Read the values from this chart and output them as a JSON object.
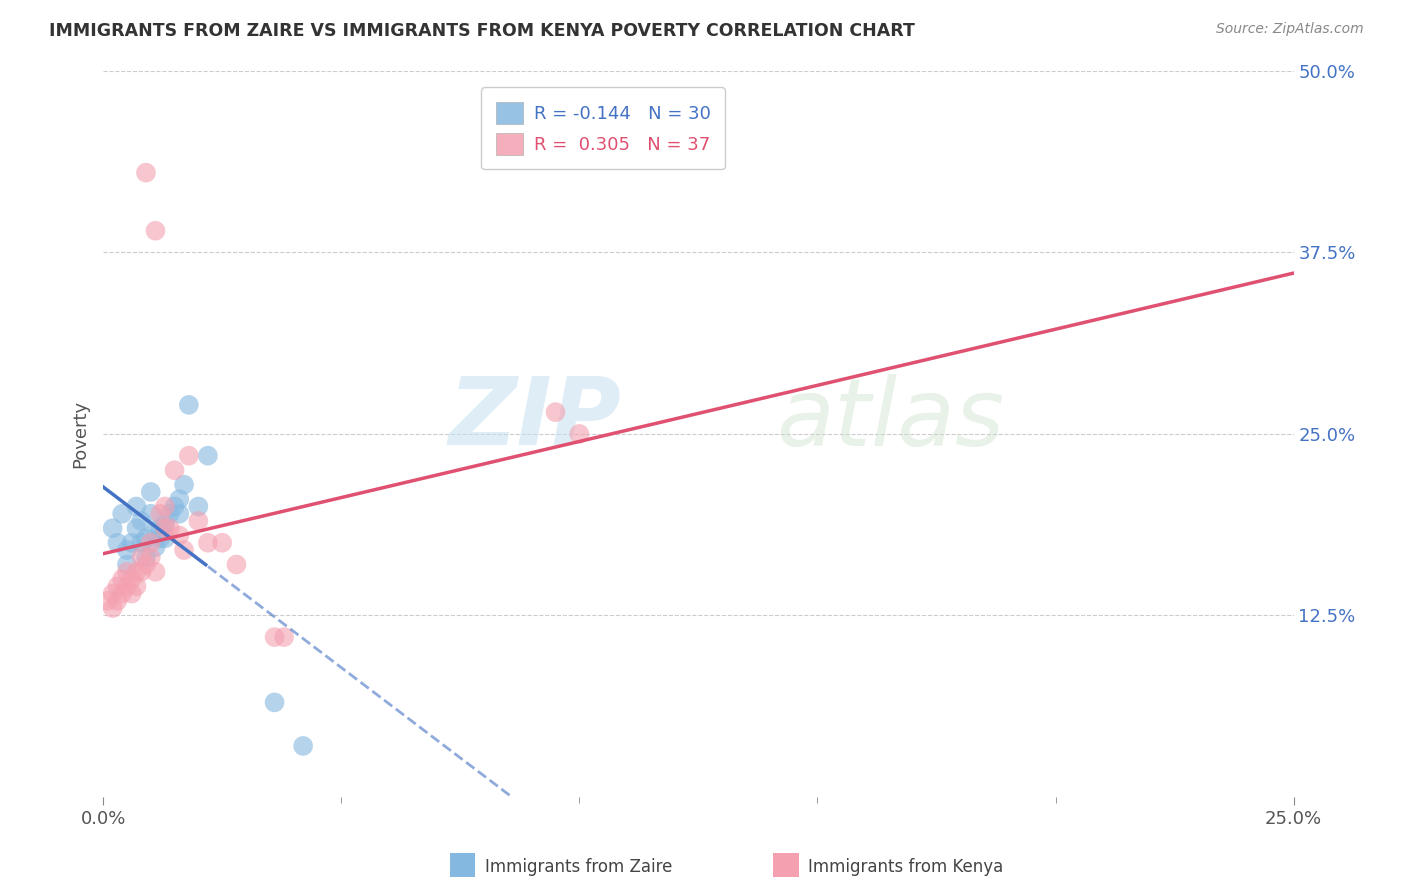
{
  "title": "IMMIGRANTS FROM ZAIRE VS IMMIGRANTS FROM KENYA POVERTY CORRELATION CHART",
  "source": "Source: ZipAtlas.com",
  "ylabel_label": "Poverty",
  "zaire_R": -0.144,
  "zaire_N": 30,
  "kenya_R": 0.305,
  "kenya_N": 37,
  "zaire_color": "#85b8e0",
  "kenya_color": "#f4a0b0",
  "zaire_line_color": "#4472c4",
  "kenya_line_color": "#e05070",
  "legend_labels": [
    "Immigrants from Zaire",
    "Immigrants from Kenya"
  ],
  "xlim": [
    0.0,
    0.25
  ],
  "ylim": [
    0.0,
    0.5
  ],
  "zaire_points_x": [
    0.002,
    0.003,
    0.004,
    0.005,
    0.005,
    0.006,
    0.007,
    0.007,
    0.008,
    0.008,
    0.009,
    0.009,
    0.01,
    0.01,
    0.011,
    0.011,
    0.012,
    0.012,
    0.013,
    0.013,
    0.014,
    0.015,
    0.016,
    0.016,
    0.017,
    0.018,
    0.02,
    0.022,
    0.036,
    0.042
  ],
  "zaire_points_y": [
    0.185,
    0.175,
    0.195,
    0.17,
    0.16,
    0.175,
    0.185,
    0.2,
    0.175,
    0.19,
    0.165,
    0.178,
    0.195,
    0.21,
    0.182,
    0.172,
    0.178,
    0.185,
    0.188,
    0.178,
    0.195,
    0.2,
    0.205,
    0.195,
    0.215,
    0.27,
    0.2,
    0.235,
    0.065,
    0.035
  ],
  "kenya_points_x": [
    0.001,
    0.002,
    0.002,
    0.003,
    0.003,
    0.004,
    0.004,
    0.005,
    0.005,
    0.006,
    0.006,
    0.007,
    0.007,
    0.008,
    0.008,
    0.009,
    0.009,
    0.01,
    0.01,
    0.011,
    0.011,
    0.012,
    0.013,
    0.013,
    0.014,
    0.015,
    0.016,
    0.017,
    0.018,
    0.02,
    0.022,
    0.025,
    0.028,
    0.036,
    0.038,
    0.095,
    0.1
  ],
  "kenya_points_y": [
    0.135,
    0.13,
    0.14,
    0.135,
    0.145,
    0.14,
    0.15,
    0.145,
    0.155,
    0.14,
    0.15,
    0.145,
    0.155,
    0.155,
    0.165,
    0.43,
    0.16,
    0.175,
    0.165,
    0.155,
    0.39,
    0.195,
    0.185,
    0.2,
    0.185,
    0.225,
    0.18,
    0.17,
    0.235,
    0.19,
    0.175,
    0.175,
    0.16,
    0.11,
    0.11,
    0.265,
    0.25
  ],
  "watermark_zip": "ZIP",
  "watermark_atlas": "atlas",
  "background_color": "#ffffff",
  "grid_color": "#cccccc",
  "zaire_line_solid_end": 0.022,
  "kenya_line_solid_end": 0.25
}
